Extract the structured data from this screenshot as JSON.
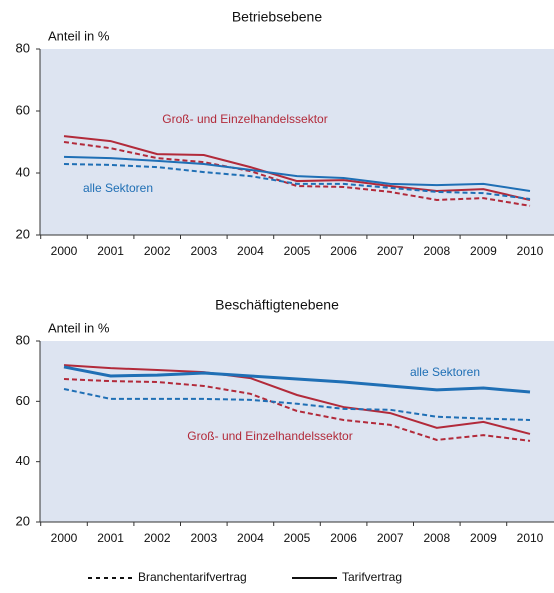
{
  "chart_data": [
    {
      "type": "line",
      "title": "Betriebsebene",
      "ylabel": "Anteil in %",
      "categories": [
        "2000",
        "2001",
        "2002",
        "2003",
        "2004",
        "2005",
        "2006",
        "2007",
        "2008",
        "2009",
        "2010"
      ],
      "ylim": [
        20,
        80
      ],
      "yticks": [
        20,
        40,
        60,
        80
      ],
      "annotations": [
        "Groß- und Einzelhandelssektor",
        "alle Sektoren"
      ],
      "series": [
        {
          "color": "#b22a3a",
          "dashed": false,
          "values": [
            51.9,
            50.3,
            46.1,
            45.8,
            41.9,
            37.4,
            37.7,
            35.8,
            34.2,
            34.8,
            31.3
          ]
        },
        {
          "color": "#b22a3a",
          "dashed": true,
          "values": [
            50,
            48,
            44.8,
            43.5,
            40.6,
            35.8,
            35.5,
            33.9,
            31.3,
            31.9,
            29.4
          ]
        },
        {
          "color": "#1f6fb5",
          "dashed": false,
          "values": [
            45.2,
            44.8,
            43.9,
            42.9,
            41,
            39,
            38.4,
            36.5,
            36.1,
            36.5,
            34.2
          ]
        },
        {
          "color": "#1f6fb5",
          "dashed": true,
          "values": [
            42.9,
            42.6,
            41.9,
            40.3,
            39,
            36.5,
            36.5,
            35.2,
            33.9,
            33.5,
            31.6
          ]
        }
      ]
    },
    {
      "type": "line",
      "title": "Beschäftigtenebene",
      "ylabel": "Anteil in %",
      "categories": [
        "2000",
        "2001",
        "2002",
        "2003",
        "2004",
        "2005",
        "2006",
        "2007",
        "2008",
        "2009",
        "2010"
      ],
      "ylim": [
        20,
        80
      ],
      "yticks": [
        20,
        40,
        60,
        80
      ],
      "annotations": [
        "alle Sektoren",
        "Groß- und Einzelhandelssektor"
      ],
      "series": [
        {
          "color": "#b22a3a",
          "dashed": false,
          "values": [
            72,
            71,
            70.4,
            69.7,
            67.7,
            62.1,
            58.1,
            56.1,
            51.2,
            53.2,
            49.2
          ]
        },
        {
          "color": "#b22a3a",
          "dashed": true,
          "values": [
            67.4,
            66.7,
            66.4,
            65.1,
            62.5,
            56.8,
            53.8,
            52.2,
            47.2,
            48.8,
            46.9
          ]
        },
        {
          "color": "#1f6fb5",
          "dashed": false,
          "values": [
            71.4,
            68.4,
            68.7,
            69.4,
            68.4,
            67.4,
            66.4,
            65.1,
            63.8,
            64.4,
            63.1
          ]
        },
        {
          "color": "#1f6fb5",
          "dashed": true,
          "values": [
            64.1,
            60.8,
            60.8,
            60.8,
            60.5,
            59.2,
            57.5,
            57.2,
            54.9,
            54.3,
            53.8
          ]
        }
      ]
    }
  ],
  "legend": [
    {
      "label": "Branchentarifvertrag",
      "dashed": true
    },
    {
      "label": "Tarifvertrag",
      "dashed": false
    }
  ]
}
